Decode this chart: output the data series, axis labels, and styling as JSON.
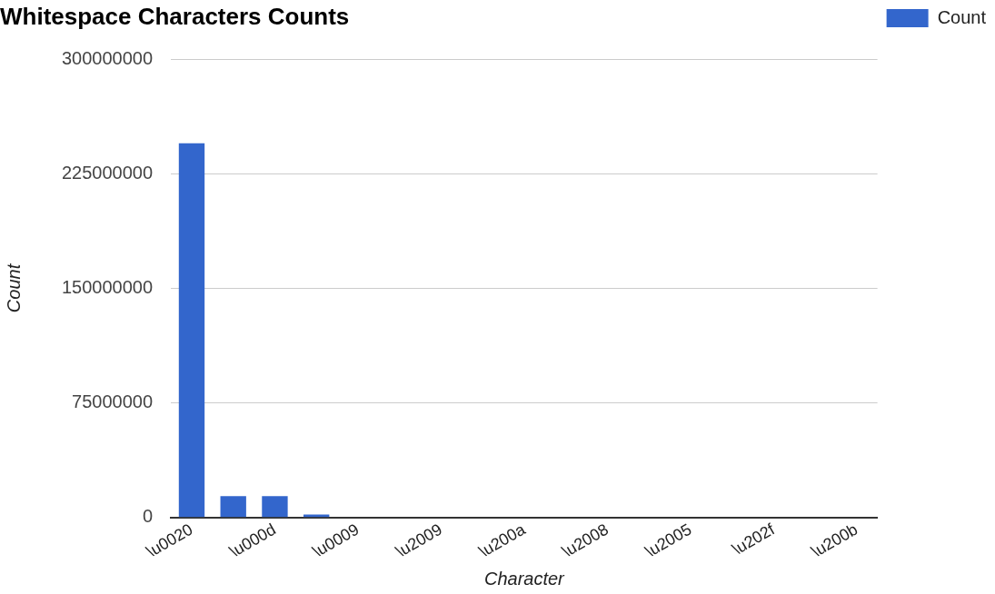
{
  "chart_data": {
    "type": "bar",
    "title": "Whitespace Characters Counts",
    "xlabel": "Character",
    "ylabel": "Count",
    "categories": [
      "\\u0020",
      null,
      "\\u000d",
      null,
      "\\u0009",
      null,
      "\\u2009",
      null,
      "\\u200a",
      null,
      "\\u2008",
      null,
      "\\u2005",
      null,
      "\\u202f",
      null,
      "\\u200b"
    ],
    "series": [
      {
        "name": "Count",
        "color": "#3366cc",
        "values": [
          245000000,
          14000000,
          14000000,
          2000000,
          0,
          0,
          0,
          0,
          0,
          0,
          0,
          0,
          0,
          0,
          0,
          0,
          0
        ]
      }
    ],
    "ylim": [
      0,
      300000000
    ],
    "yticks": [
      0,
      75000000,
      150000000,
      225000000,
      300000000
    ],
    "grid": "y",
    "legend": "top right"
  }
}
